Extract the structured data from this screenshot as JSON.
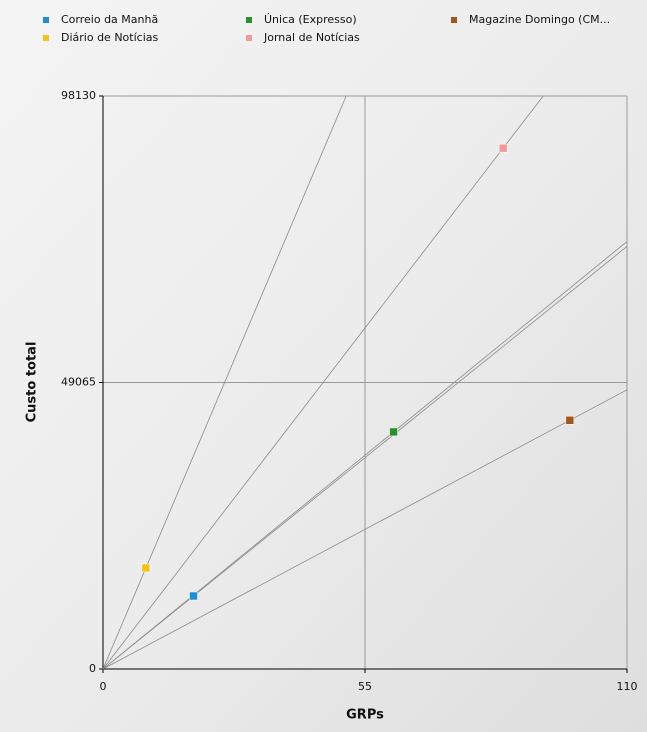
{
  "chart_data": {
    "type": "scatter",
    "x_label": "GRPs",
    "y_label": "Custo total",
    "xlim": [
      0,
      110
    ],
    "xticks": [
      0,
      55,
      110
    ],
    "ylim": [
      0,
      98130
    ],
    "yticks": [
      0,
      49065,
      98130
    ],
    "grid": true,
    "legend": "top",
    "rays": true,
    "series": [
      {
        "name": "Correio da Manhã",
        "color": "#1f8fd0",
        "x": [
          19
        ],
        "values": [
          12500
        ]
      },
      {
        "name": "Única (Expresso)",
        "color": "#2f8f2f",
        "x": [
          61
        ],
        "values": [
          40600
        ]
      },
      {
        "name": "Magazine Domingo (CM...",
        "color": "#a4561f",
        "x": [
          98
        ],
        "values": [
          42600
        ]
      },
      {
        "name": "Diário de Notícias",
        "color": "#f5c21c",
        "x": [
          9
        ],
        "values": [
          17300
        ]
      },
      {
        "name": "Jornal de Notícias",
        "color": "#f29a9a",
        "x": [
          84
        ],
        "values": [
          89200
        ]
      }
    ]
  }
}
